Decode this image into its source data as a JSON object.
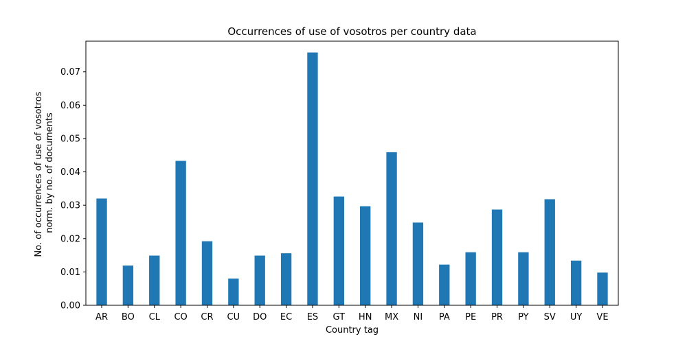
{
  "chart_data": {
    "type": "bar",
    "title": "Occurrences of use of vosotros per country data",
    "xlabel": "Country tag",
    "ylabel_lines": [
      "No. of occurrences of use of vosotros",
      "norm. by no. of documents"
    ],
    "categories": [
      "AR",
      "BO",
      "CL",
      "CO",
      "CR",
      "CU",
      "DO",
      "EC",
      "ES",
      "GT",
      "HN",
      "MX",
      "NI",
      "PA",
      "PE",
      "PR",
      "PY",
      "SV",
      "UY",
      "VE"
    ],
    "values": [
      0.032,
      0.0119,
      0.0149,
      0.0433,
      0.0192,
      0.008,
      0.0149,
      0.0156,
      0.0758,
      0.0326,
      0.0297,
      0.0459,
      0.0248,
      0.0122,
      0.0159,
      0.0287,
      0.0159,
      0.0318,
      0.0134,
      0.0098
    ],
    "ylim": [
      0,
      0.0792
    ],
    "yticks": [
      0.0,
      0.01,
      0.02,
      0.03,
      0.04,
      0.05,
      0.06,
      0.07
    ],
    "ytick_labels": [
      "0.00",
      "0.01",
      "0.02",
      "0.03",
      "0.04",
      "0.05",
      "0.06",
      "0.07"
    ],
    "bar_color": "#1f77b4",
    "grid": false,
    "legend": "none"
  }
}
